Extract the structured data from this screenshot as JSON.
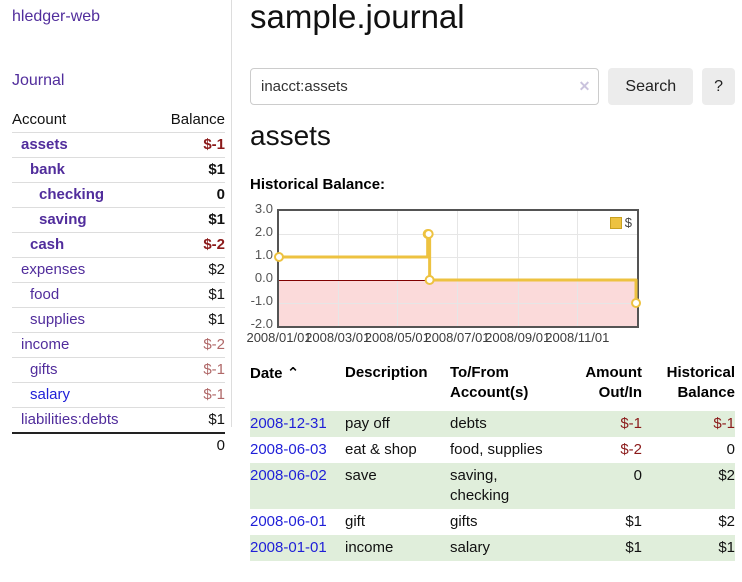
{
  "app": {
    "title": "hledger-web"
  },
  "nav": {
    "journal": "Journal"
  },
  "colors": {
    "purple": "#512d9c",
    "blue": "#1f1fd8",
    "negative": "#8b1a1a",
    "negative_faded": "#b06868",
    "stripe": "#e0eedb",
    "button_bg": "#ececec",
    "gold": "#edc240"
  },
  "sidebar": {
    "columns": {
      "account": "Account",
      "balance": "Balance"
    },
    "accounts": [
      {
        "name": "assets",
        "level": 1,
        "balance": "$-1",
        "bold": true,
        "negative": true
      },
      {
        "name": "bank",
        "level": 2,
        "balance": "$1",
        "bold": true
      },
      {
        "name": "checking",
        "level": 3,
        "balance": "0",
        "bold": true
      },
      {
        "name": "saving",
        "level": 3,
        "balance": "$1",
        "bold": true
      },
      {
        "name": "cash",
        "level": 2,
        "balance": "$-2",
        "bold": true,
        "negative": true
      },
      {
        "name": "expenses",
        "level": 1,
        "balance": "$2"
      },
      {
        "name": "food",
        "level": 2,
        "balance": "$1"
      },
      {
        "name": "supplies",
        "level": 2,
        "balance": "$1"
      },
      {
        "name": "income",
        "level": 1,
        "balance": "$-2",
        "negative": true,
        "faded": true
      },
      {
        "name": "gifts",
        "level": 2,
        "balance": "$-1",
        "negative": true,
        "faded": true
      },
      {
        "name": "salary",
        "level": 2,
        "balance": "$-1",
        "negative": true,
        "faded": true,
        "blue": true
      },
      {
        "name": "liabilities:debts",
        "level": 1,
        "balance": "$1"
      }
    ],
    "total": "0"
  },
  "main": {
    "title": "sample.journal",
    "search": {
      "value": "inacct:assets",
      "clear_icon": "✕",
      "search_button": "Search",
      "help_button": "?"
    },
    "account_heading": "assets",
    "chart_label": "Historical Balance:"
  },
  "chart_data": {
    "type": "line",
    "step": true,
    "title": "Historical Balance:",
    "x_range": [
      "2008-01-01",
      "2009-01-01"
    ],
    "y_range": [
      -2,
      3
    ],
    "y_ticks": [
      3.0,
      2.0,
      1.0,
      0.0,
      -1.0,
      -2.0
    ],
    "x_ticks": [
      "2008/01/01",
      "2008/03/01",
      "2008/05/01",
      "2008/07/01",
      "2008/09/01",
      "2008/11/01"
    ],
    "series": [
      {
        "name": "$",
        "color": "#edc240",
        "points": [
          {
            "date": "2008-01-01",
            "value": 1
          },
          {
            "date": "2008-06-01",
            "value": 2
          },
          {
            "date": "2008-06-02",
            "value": 2
          },
          {
            "date": "2008-06-03",
            "value": 0
          },
          {
            "date": "2008-12-31",
            "value": -1
          }
        ]
      }
    ],
    "legend_position": "top-right",
    "grid": true,
    "grid_color": "#e6e6e6",
    "border_color": "#545454",
    "zero_line_color": "#800000",
    "negative_region_color": "#fbdada"
  },
  "register": {
    "headers": {
      "date": "Date",
      "description": "Description",
      "accounts": "To/From Account(s)",
      "amount": "Amount Out/In",
      "balance": "Historical Balance"
    },
    "sort_icon": "⌃",
    "rows": [
      {
        "date": "2008-12-31",
        "description": "pay off",
        "accounts": "debts",
        "amount": "$-1",
        "amount_negative": true,
        "balance": "$-1",
        "balance_negative": true
      },
      {
        "date": "2008-06-03",
        "description": "eat & shop",
        "accounts": "food, supplies",
        "amount": "$-2",
        "amount_negative": true,
        "balance": "0"
      },
      {
        "date": "2008-06-02",
        "description": "save",
        "accounts": "saving, checking",
        "amount": "0",
        "balance": "$2"
      },
      {
        "date": "2008-06-01",
        "description": "gift",
        "accounts": "gifts",
        "amount": "$1",
        "balance": "$2"
      },
      {
        "date": "2008-01-01",
        "description": "income",
        "accounts": "salary",
        "amount": "$1",
        "balance": "$1"
      }
    ]
  }
}
